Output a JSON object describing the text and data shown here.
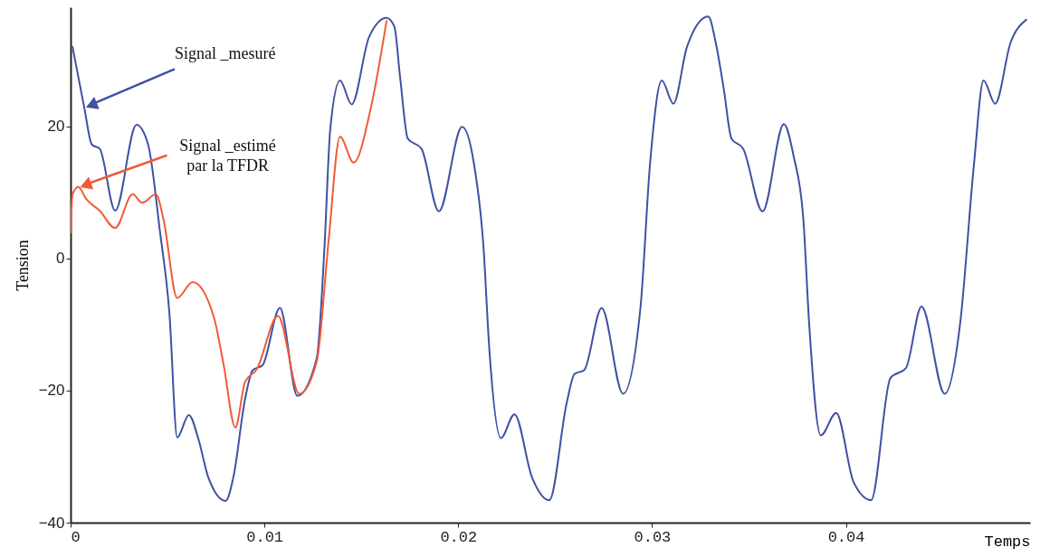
{
  "chart_data": {
    "type": "line",
    "xlabel": "Temps",
    "ylabel": "Tension",
    "xlim": [
      0,
      0.0495
    ],
    "ylim": [
      -40,
      38
    ],
    "xticks": [
      0,
      0.01,
      0.02,
      0.03,
      0.04
    ],
    "yticks": [
      -40,
      -20,
      0,
      20
    ],
    "annotations": [
      {
        "text": "Signal _mesuré",
        "x": 0.0007,
        "y": 22.9
      },
      {
        "text": "Signal _estimé\npar la TFDR",
        "x": 0.0004,
        "y": 10.8
      }
    ],
    "series": [
      {
        "color": "#3f51a3",
        "x": [
          0.0001,
          0.0007,
          0.0011,
          0.0015,
          0.0023,
          0.0034,
          0.004,
          0.0046,
          0.0051,
          0.0055,
          0.0061,
          0.0066,
          0.0071,
          0.008,
          0.0084,
          0.009,
          0.0094,
          0.0099,
          0.0108,
          0.0117,
          0.0127,
          0.0131,
          0.0134,
          0.0139,
          0.0145,
          0.0154,
          0.0163,
          0.0167,
          0.017,
          0.0174,
          0.0181,
          0.019,
          0.0202,
          0.0208,
          0.0213,
          0.0216,
          0.0222,
          0.0229,
          0.0238,
          0.0247,
          0.0256,
          0.026,
          0.0265,
          0.0274,
          0.0285,
          0.0294,
          0.0299,
          0.0305,
          0.0311,
          0.0318,
          0.0329,
          0.0333,
          0.0337,
          0.0341,
          0.0347,
          0.0357,
          0.0368,
          0.0373,
          0.0378,
          0.0381,
          0.0387,
          0.0395,
          0.0404,
          0.0413,
          0.0423,
          0.0431,
          0.0439,
          0.0451,
          0.0459,
          0.0466,
          0.0471,
          0.0477,
          0.0485,
          0.0493
        ],
        "values": [
          32.0,
          22.9,
          17.2,
          16.6,
          7.2,
          20.2,
          17.2,
          4.3,
          -8.4,
          -27.1,
          -23.7,
          -27.4,
          -33.1,
          -36.7,
          -33.1,
          -21.3,
          -16.9,
          -16.2,
          -7.5,
          -20.8,
          -15.1,
          1.8,
          19.7,
          26.9,
          23.3,
          33.5,
          36.4,
          35.1,
          27.4,
          18.1,
          16.6,
          7.1,
          19.9,
          14.5,
          1.8,
          -13.6,
          -27.2,
          -23.6,
          -33.1,
          -36.6,
          -21.8,
          -17.5,
          -16.9,
          -7.5,
          -20.5,
          -7.5,
          14.5,
          26.9,
          23.4,
          32.0,
          36.6,
          32.4,
          25.6,
          18.1,
          16.6,
          7.1,
          20.3,
          15.5,
          6.1,
          -9.7,
          -26.8,
          -23.4,
          -33.9,
          -36.6,
          -18.1,
          -16.6,
          -7.3,
          -20.5,
          -9.7,
          14.0,
          26.9,
          23.4,
          32.7,
          36.1
        ]
      },
      {
        "color": "#ef5b3b",
        "x": [
          0,
          0.0001,
          0.0004,
          0.0008,
          0.0015,
          0.0023,
          0.0032,
          0.0037,
          0.0044,
          0.0048,
          0.0055,
          0.0063,
          0.0074,
          0.0079,
          0.0085,
          0.009,
          0.0096,
          0.0107,
          0.0118,
          0.0127,
          0.0133,
          0.0139,
          0.0146,
          0.0155,
          0.0163
        ],
        "values": [
          3.9,
          9.7,
          10.8,
          9.0,
          7.2,
          4.6,
          9.7,
          8.4,
          9.7,
          5.8,
          -6.0,
          -3.6,
          -9.0,
          -16.2,
          -25.6,
          -18.7,
          -16.8,
          -8.7,
          -20.5,
          -15.6,
          2.3,
          18.4,
          14.5,
          22.9,
          35.9
        ]
      }
    ]
  }
}
